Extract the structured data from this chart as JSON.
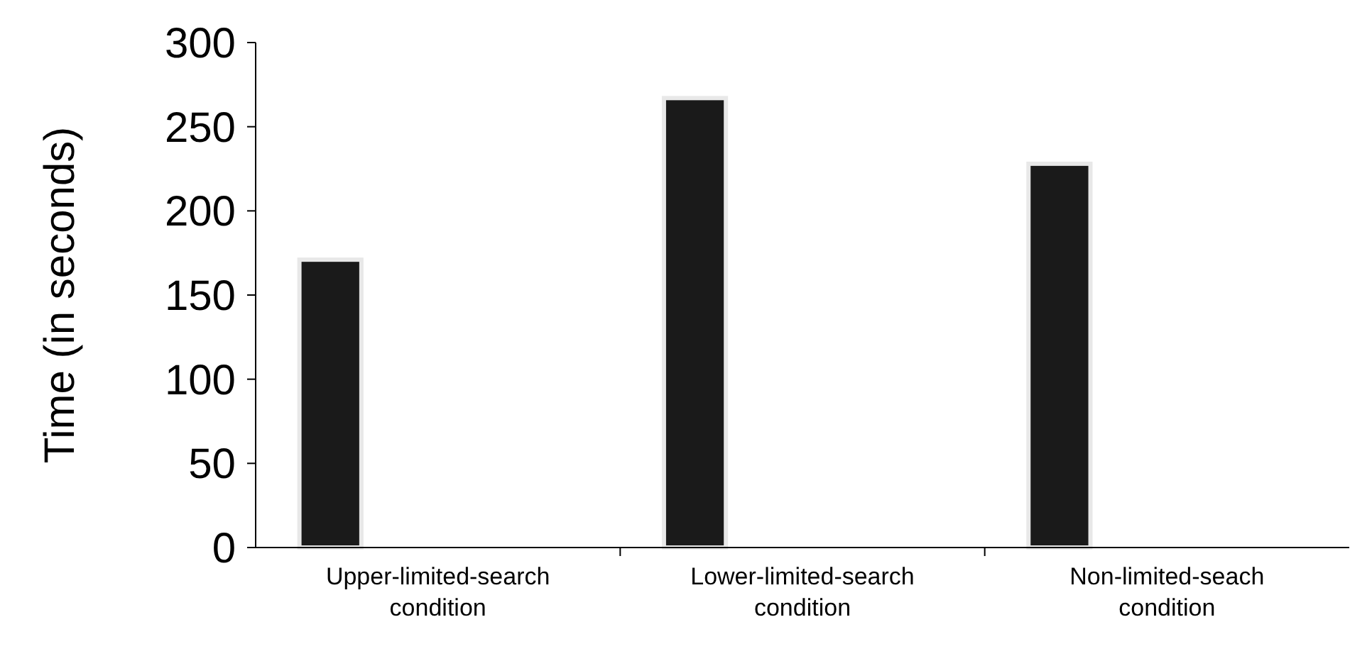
{
  "chart_data": {
    "type": "bar",
    "ylabel": "Time (in seconds)",
    "categories": [
      "Upper-limited-search condition",
      "Lower-limited-search condition",
      "Non-limited-seach condition"
    ],
    "values": [
      171,
      267,
      228
    ],
    "color": "#1a1a1a",
    "ylim": [
      0,
      300
    ],
    "yticks": [
      0,
      50,
      100,
      150,
      200,
      250,
      300
    ],
    "grid": false
  }
}
